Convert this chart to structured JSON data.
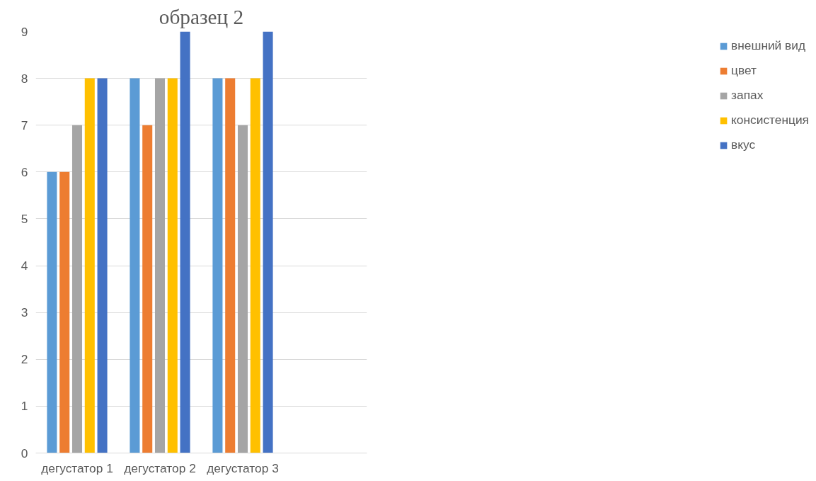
{
  "chart_data": {
    "type": "bar",
    "title": "образец 2",
    "categories": [
      "дегустатор 1",
      "дегустатор 2",
      "дегустатор 3",
      null
    ],
    "series": [
      {
        "name": "внешний вид",
        "color": "#5b9bd5",
        "values": [
          6,
          8,
          8,
          null
        ]
      },
      {
        "name": "цвет",
        "color": "#ed7d31",
        "values": [
          6,
          7,
          8,
          null
        ]
      },
      {
        "name": "запах",
        "color": "#a5a5a5",
        "values": [
          7,
          8,
          7,
          null
        ]
      },
      {
        "name": "консистенция",
        "color": "#ffc000",
        "values": [
          8,
          8,
          8,
          null
        ]
      },
      {
        "name": "вкус",
        "color": "#4472c4",
        "values": [
          8,
          9,
          9,
          null
        ]
      }
    ],
    "ylim": [
      0,
      9
    ],
    "yticks": [
      0,
      1,
      2,
      3,
      4,
      5,
      6,
      7,
      8,
      9
    ],
    "grid": "y",
    "legend": "right"
  }
}
